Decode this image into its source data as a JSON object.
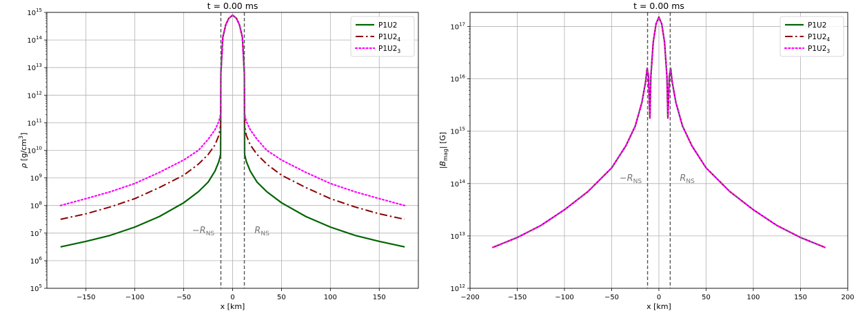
{
  "chart_data": [
    {
      "type": "line",
      "title": "t = 0.00 ms",
      "xlabel": "x [km]",
      "ylabel": "ρ [g/cm³]",
      "ylabel_parts": {
        "symbol": "ρ",
        "unit": "[g/cm",
        "exp": "3",
        "close": "]"
      },
      "xlim": [
        -190,
        190
      ],
      "ylim_log10": [
        5,
        15
      ],
      "yscale": "log",
      "x_ticks": [
        -150,
        -100,
        -50,
        0,
        50,
        100,
        150
      ],
      "x_tick_labels": [
        "−150",
        "−100",
        "−50",
        "0",
        "50",
        "100",
        "150"
      ],
      "y_ticks_exp": [
        5,
        6,
        7,
        8,
        9,
        10,
        11,
        12,
        13,
        14,
        15
      ],
      "grid": true,
      "legend_position": "top-right",
      "vlines": [
        -12,
        12
      ],
      "annotations": [
        {
          "base": "−R",
          "sub": "NS",
          "x": -30,
          "y_log10": 7.0
        },
        {
          "base": "R",
          "sub": "NS",
          "x": 30,
          "y_log10": 7.0
        }
      ],
      "series": [
        {
          "name": "P1U2",
          "name_base": "P1U2",
          "name_sub": "",
          "color": "#006400",
          "style": "solid",
          "points": [
            [
              -176,
              6.5
            ],
            [
              -150,
              6.7
            ],
            [
              -125,
              6.92
            ],
            [
              -100,
              7.22
            ],
            [
              -75,
              7.6
            ],
            [
              -50,
              8.1
            ],
            [
              -35,
              8.5
            ],
            [
              -25,
              8.85
            ],
            [
              -18,
              9.25
            ],
            [
              -14,
              9.6
            ],
            [
              -12.3,
              9.85
            ],
            [
              -12,
              12.8
            ],
            [
              -10,
              14.1
            ],
            [
              -7,
              14.55
            ],
            [
              -4,
              14.78
            ],
            [
              0,
              14.9
            ],
            [
              4,
              14.78
            ],
            [
              7,
              14.55
            ],
            [
              10,
              14.1
            ],
            [
              12,
              12.8
            ],
            [
              12.3,
              9.85
            ],
            [
              14,
              9.6
            ],
            [
              18,
              9.25
            ],
            [
              25,
              8.85
            ],
            [
              35,
              8.5
            ],
            [
              50,
              8.1
            ],
            [
              75,
              7.6
            ],
            [
              100,
              7.22
            ],
            [
              125,
              6.92
            ],
            [
              150,
              6.7
            ],
            [
              176,
              6.5
            ]
          ]
        },
        {
          "name": "P1U2₄",
          "name_base": "P1U2",
          "name_sub": "4",
          "color": "#8b0000",
          "style": "dashdot",
          "points": [
            [
              -176,
              7.5
            ],
            [
              -150,
              7.7
            ],
            [
              -125,
              7.95
            ],
            [
              -100,
              8.25
            ],
            [
              -75,
              8.65
            ],
            [
              -50,
              9.1
            ],
            [
              -35,
              9.5
            ],
            [
              -25,
              9.85
            ],
            [
              -18,
              10.2
            ],
            [
              -14,
              10.55
            ],
            [
              -12.3,
              10.9
            ],
            [
              -12,
              12.8
            ],
            [
              -10,
              14.1
            ],
            [
              -7,
              14.55
            ],
            [
              -4,
              14.78
            ],
            [
              0,
              14.9
            ],
            [
              4,
              14.78
            ],
            [
              7,
              14.55
            ],
            [
              10,
              14.1
            ],
            [
              12,
              12.8
            ],
            [
              12.3,
              10.9
            ],
            [
              14,
              10.55
            ],
            [
              18,
              10.2
            ],
            [
              25,
              9.85
            ],
            [
              35,
              9.5
            ],
            [
              50,
              9.1
            ],
            [
              75,
              8.65
            ],
            [
              100,
              8.25
            ],
            [
              125,
              7.95
            ],
            [
              150,
              7.7
            ],
            [
              176,
              7.5
            ]
          ]
        },
        {
          "name": "P1U2₃",
          "name_base": "P1U2",
          "name_sub": "3",
          "color": "#ff00ff",
          "style": "dotted",
          "points": [
            [
              -176,
              8.0
            ],
            [
              -150,
              8.25
            ],
            [
              -125,
              8.5
            ],
            [
              -100,
              8.8
            ],
            [
              -75,
              9.2
            ],
            [
              -50,
              9.65
            ],
            [
              -35,
              10.0
            ],
            [
              -25,
              10.4
            ],
            [
              -18,
              10.75
            ],
            [
              -14,
              11.05
            ],
            [
              -12.3,
              11.3
            ],
            [
              -12,
              12.8
            ],
            [
              -10,
              14.1
            ],
            [
              -7,
              14.55
            ],
            [
              -4,
              14.78
            ],
            [
              0,
              14.9
            ],
            [
              4,
              14.78
            ],
            [
              7,
              14.55
            ],
            [
              10,
              14.1
            ],
            [
              12,
              12.8
            ],
            [
              12.3,
              11.3
            ],
            [
              14,
              11.05
            ],
            [
              18,
              10.75
            ],
            [
              25,
              10.4
            ],
            [
              35,
              10.0
            ],
            [
              50,
              9.65
            ],
            [
              75,
              9.2
            ],
            [
              100,
              8.8
            ],
            [
              125,
              8.5
            ],
            [
              150,
              8.25
            ],
            [
              176,
              8.0
            ]
          ]
        }
      ]
    },
    {
      "type": "line",
      "title": "t = 0.00 ms",
      "xlabel": "x [km]",
      "ylabel": "|B_mag| [G]",
      "ylabel_parts": {
        "symbol": "|B",
        "sub": "mag",
        "rest": "| [G]"
      },
      "xlim": [
        -200,
        200
      ],
      "ylim_log10": [
        12,
        17.27
      ],
      "yscale": "log",
      "x_ticks": [
        -200,
        -150,
        -100,
        -50,
        0,
        50,
        100,
        150,
        200
      ],
      "x_tick_labels": [
        "−200",
        "−150",
        "−100",
        "−50",
        "0",
        "50",
        "100",
        "150",
        "200"
      ],
      "y_ticks_exp": [
        12,
        13,
        14,
        15,
        16,
        17
      ],
      "grid": true,
      "legend_position": "top-right",
      "vlines": [
        -12,
        12
      ],
      "annotations": [
        {
          "base": "−R",
          "sub": "NS",
          "x": -30,
          "y_log10": 14.05
        },
        {
          "base": "R",
          "sub": "NS",
          "x": 30,
          "y_log10": 14.05
        }
      ],
      "series": [
        {
          "name": "P1U2",
          "name_base": "P1U2",
          "name_sub": "",
          "color": "#006400",
          "style": "solid",
          "points": [
            [
              -176,
              12.78
            ],
            [
              -150,
              12.97
            ],
            [
              -125,
              13.2
            ],
            [
              -100,
              13.5
            ],
            [
              -75,
              13.85
            ],
            [
              -50,
              14.3
            ],
            [
              -35,
              14.72
            ],
            [
              -25,
              15.1
            ],
            [
              -18,
              15.55
            ],
            [
              -14,
              15.95
            ],
            [
              -12.5,
              16.2
            ],
            [
              -11,
              16.05
            ],
            [
              -9.5,
              15.25
            ],
            [
              -8.5,
              16.05
            ],
            [
              -6,
              16.7
            ],
            [
              -3,
              17.05
            ],
            [
              0,
              17.18
            ],
            [
              3,
              17.05
            ],
            [
              6,
              16.7
            ],
            [
              8.5,
              16.05
            ],
            [
              9.5,
              15.25
            ],
            [
              11,
              16.05
            ],
            [
              12.5,
              16.2
            ],
            [
              14,
              15.95
            ],
            [
              18,
              15.55
            ],
            [
              25,
              15.1
            ],
            [
              35,
              14.72
            ],
            [
              50,
              14.3
            ],
            [
              75,
              13.85
            ],
            [
              100,
              13.5
            ],
            [
              125,
              13.2
            ],
            [
              150,
              12.97
            ],
            [
              176,
              12.78
            ]
          ]
        },
        {
          "name": "P1U2₄",
          "name_base": "P1U2",
          "name_sub": "4",
          "color": "#8b0000",
          "style": "dashdot",
          "points": [
            [
              -176,
              12.78
            ],
            [
              -150,
              12.97
            ],
            [
              -125,
              13.2
            ],
            [
              -100,
              13.5
            ],
            [
              -75,
              13.85
            ],
            [
              -50,
              14.3
            ],
            [
              -35,
              14.72
            ],
            [
              -25,
              15.1
            ],
            [
              -18,
              15.55
            ],
            [
              -14,
              15.95
            ],
            [
              -12.5,
              16.2
            ],
            [
              -11,
              16.05
            ],
            [
              -9.5,
              15.25
            ],
            [
              -8.5,
              16.05
            ],
            [
              -6,
              16.7
            ],
            [
              -3,
              17.05
            ],
            [
              0,
              17.18
            ],
            [
              3,
              17.05
            ],
            [
              6,
              16.7
            ],
            [
              8.5,
              16.05
            ],
            [
              9.5,
              15.25
            ],
            [
              11,
              16.05
            ],
            [
              12.5,
              16.2
            ],
            [
              14,
              15.95
            ],
            [
              18,
              15.55
            ],
            [
              25,
              15.1
            ],
            [
              35,
              14.72
            ],
            [
              50,
              14.3
            ],
            [
              75,
              13.85
            ],
            [
              100,
              13.5
            ],
            [
              125,
              13.2
            ],
            [
              150,
              12.97
            ],
            [
              176,
              12.78
            ]
          ]
        },
        {
          "name": "P1U2₃",
          "name_base": "P1U2",
          "name_sub": "3",
          "color": "#ff00ff",
          "style": "dotted",
          "points": [
            [
              -176,
              12.78
            ],
            [
              -150,
              12.97
            ],
            [
              -125,
              13.2
            ],
            [
              -100,
              13.5
            ],
            [
              -75,
              13.85
            ],
            [
              -50,
              14.3
            ],
            [
              -35,
              14.72
            ],
            [
              -25,
              15.1
            ],
            [
              -18,
              15.55
            ],
            [
              -14,
              15.95
            ],
            [
              -12.5,
              16.2
            ],
            [
              -11,
              16.05
            ],
            [
              -9.5,
              15.25
            ],
            [
              -8.5,
              16.05
            ],
            [
              -6,
              16.7
            ],
            [
              -3,
              17.05
            ],
            [
              0,
              17.18
            ],
            [
              3,
              17.05
            ],
            [
              6,
              16.7
            ],
            [
              8.5,
              16.05
            ],
            [
              9.5,
              15.25
            ],
            [
              11,
              16.05
            ],
            [
              12.5,
              16.2
            ],
            [
              14,
              15.95
            ],
            [
              18,
              15.55
            ],
            [
              25,
              15.1
            ],
            [
              35,
              14.72
            ],
            [
              50,
              14.3
            ],
            [
              75,
              13.85
            ],
            [
              100,
              13.5
            ],
            [
              125,
              13.2
            ],
            [
              150,
              12.97
            ],
            [
              176,
              12.78
            ]
          ]
        }
      ]
    }
  ]
}
